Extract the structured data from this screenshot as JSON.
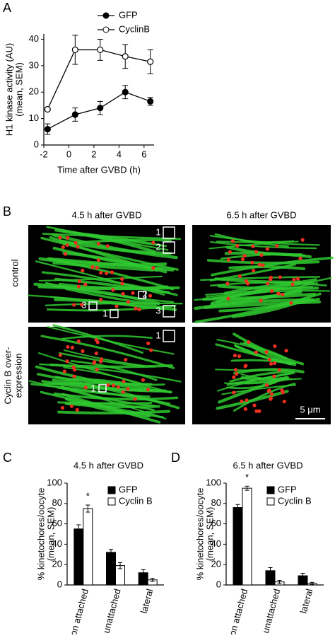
{
  "panel_labels": [
    "A",
    "B",
    "C",
    "D"
  ],
  "images": {
    "columns": [
      "4.5 h after GVBD",
      "6.5 h after GVBD"
    ],
    "rows": [
      [
        "control"
      ],
      [
        "Cyclin B over-",
        "expression"
      ]
    ],
    "insets": [
      "1",
      "2",
      "3",
      "1",
      "2",
      "3",
      "1",
      "1"
    ],
    "scale_bar": "5 μm"
  },
  "chart_data": [
    {
      "type": "line",
      "ylabel": [
        "H1 kinase activity (AU)",
        "(mean, SEM)"
      ],
      "xlabel": "Time after GVBD (h)",
      "x": [
        -1.7,
        0.5,
        2.5,
        4.5,
        6.5
      ],
      "xlim": [
        -2,
        6.8
      ],
      "xticks": [
        -2,
        0,
        2,
        4,
        6
      ],
      "ylim": [
        0,
        42
      ],
      "yticks": [
        0,
        10,
        20,
        30,
        40
      ],
      "legend": "upper right",
      "series": [
        {
          "name": "GFP",
          "color": "#000000",
          "marker": "filled",
          "values": [
            6,
            11.5,
            14,
            20,
            16.5
          ],
          "errors": [
            2,
            2.5,
            2.5,
            2.5,
            1.5
          ]
        },
        {
          "name": "CyclinB",
          "color": "#000000",
          "marker": "open",
          "values": [
            13.5,
            36,
            36,
            33.5,
            31.5
          ],
          "errors": [
            0.5,
            5.5,
            4,
            4.5,
            4.5
          ]
        }
      ]
    },
    {
      "type": "bar",
      "title": "4.5 h after GVBD",
      "ylabel": [
        "% kinetochores/oocyte",
        "(mean, SEM)"
      ],
      "categories": [
        "end–on attached",
        "unattached",
        "lateral"
      ],
      "ylim": [
        0,
        100
      ],
      "yticks": [
        0,
        20,
        40,
        60,
        80,
        100
      ],
      "annotations": [
        "*"
      ],
      "series": [
        {
          "name": "GFP",
          "color": "#000000",
          "values": [
            55,
            32,
            12
          ],
          "errors": [
            4,
            3,
            3
          ]
        },
        {
          "name": "Cyclin B",
          "color": "#ffffff",
          "values": [
            75,
            19,
            5
          ],
          "errors": [
            3.5,
            3,
            1.5
          ]
        }
      ]
    },
    {
      "type": "bar",
      "title": "6.5 h after GVBD",
      "ylabel": [
        "% kinetochores/oocyte",
        "(mean, SEM)"
      ],
      "categories": [
        "end–on attached",
        "unattached",
        "lateral"
      ],
      "ylim": [
        0,
        100
      ],
      "yticks": [
        0,
        20,
        40,
        60,
        80,
        100
      ],
      "annotations": [
        "*"
      ],
      "series": [
        {
          "name": "GFP",
          "color": "#000000",
          "values": [
            76,
            14,
            9
          ],
          "errors": [
            3,
            3,
            2.5
          ]
        },
        {
          "name": "Cyclin B",
          "color": "#ffffff",
          "values": [
            95,
            3,
            1.5
          ],
          "errors": [
            2,
            1.5,
            1
          ]
        }
      ]
    }
  ]
}
